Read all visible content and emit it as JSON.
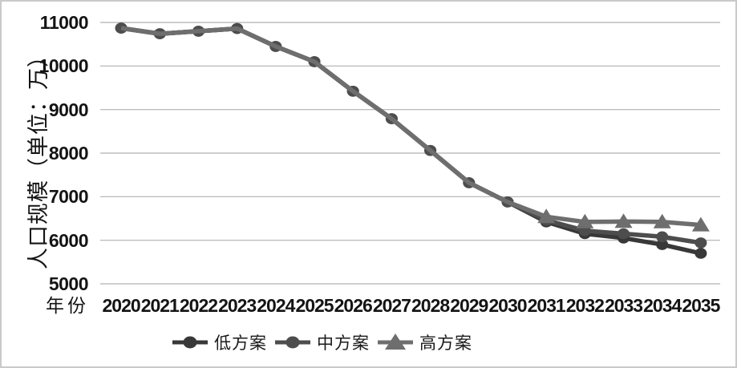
{
  "figure": {
    "background": "#ffffff",
    "border_color": "#c9c9c9",
    "gridline_color": "#b0b0b0",
    "text_color": "#141414"
  },
  "chart_data": {
    "type": "line",
    "title": "",
    "xlabel": "年份",
    "ylabel": "人口规模（单位：万）",
    "x": [
      2020,
      2021,
      2022,
      2023,
      2024,
      2025,
      2026,
      2027,
      2028,
      2029,
      2030,
      2031,
      2032,
      2033,
      2034,
      2035
    ],
    "ylim": [
      5000,
      11000
    ],
    "yticks": [
      5000,
      6000,
      7000,
      8000,
      9000,
      10000,
      11000
    ],
    "grid": true,
    "legend_position": "bottom",
    "series": [
      {
        "name": "低方案",
        "marker": "oval",
        "color": "#383838",
        "values": [
          10870,
          10740,
          10800,
          10860,
          10450,
          10100,
          9420,
          8790,
          8060,
          7320,
          6880,
          6420,
          6150,
          6050,
          5900,
          5700
        ]
      },
      {
        "name": "中方案",
        "marker": "oval",
        "color": "#4d4d4d",
        "values": [
          10870,
          10740,
          10800,
          10860,
          10450,
          10100,
          9420,
          8790,
          8060,
          7320,
          6880,
          6460,
          6220,
          6150,
          6080,
          5940
        ]
      },
      {
        "name": "高方案",
        "marker": "triangle",
        "color": "#6e6e6e",
        "markers_from_index": 11,
        "values": [
          10870,
          10740,
          10800,
          10860,
          10450,
          10100,
          9420,
          8790,
          8060,
          7320,
          6880,
          6540,
          6420,
          6430,
          6420,
          6350
        ]
      }
    ]
  }
}
